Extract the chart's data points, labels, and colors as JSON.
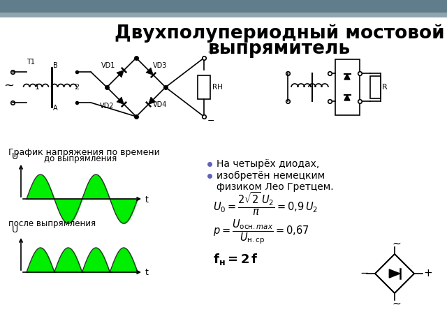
{
  "title_line1": "Двухполупериодный мостовой",
  "title_line2": "выпрямитель",
  "title_fontsize": 19,
  "bg_color": "#f0f0f0",
  "content_bg": "#ffffff",
  "header_color": "#4a6580",
  "graph_label": "График напряжения по времени",
  "before_label": "до выпрямления",
  "after_label": "после выпрямления",
  "wave_color": "#00ee00",
  "text_color": "#000000",
  "bullet1": "На четырёх диодах,",
  "bullet2": "изобретён немецким",
  "bullet3": "физиком Лео Гретцем.",
  "fn_label": "f н =2 f"
}
